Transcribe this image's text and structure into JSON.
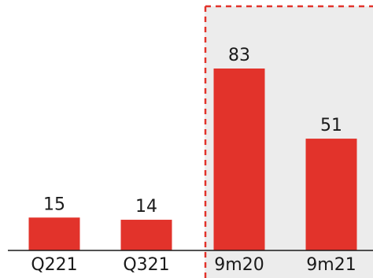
{
  "chart_data": {
    "type": "bar",
    "categories": [
      "Q221",
      "Q321",
      "9m20",
      "9m21"
    ],
    "values": [
      15,
      14,
      83,
      51
    ],
    "title": "",
    "xlabel": "",
    "ylabel": "",
    "ylim": [
      0,
      90
    ],
    "grid": false,
    "data_labels": [
      "15",
      "14",
      "83",
      "51"
    ],
    "highlighted_categories": [
      "9m20",
      "9m21"
    ],
    "highlight_style": "red dashed outline with light grey shaded background"
  },
  "colors": {
    "bar": "#e2332b",
    "highlight_fill": "#ececec",
    "highlight_border": "#e2332b",
    "axis": "#1a1a1a",
    "text": "#1a1a1a"
  }
}
